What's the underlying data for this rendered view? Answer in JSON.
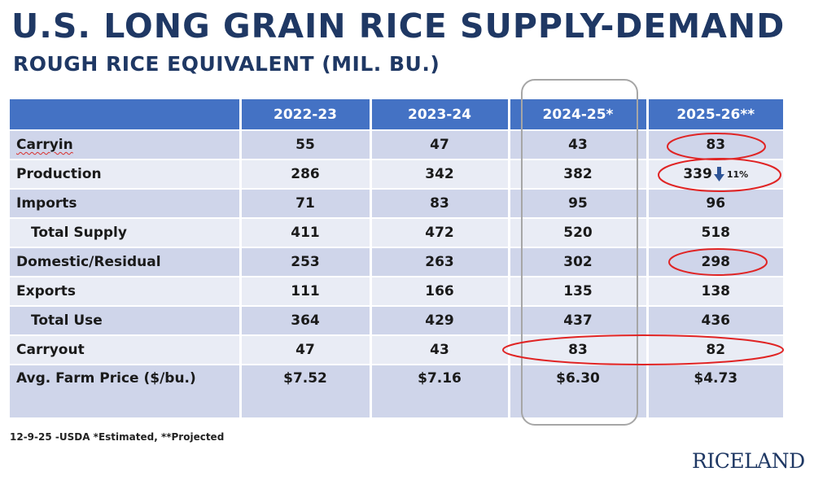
{
  "title": "U.S. LONG GRAIN RICE SUPPLY-DEMAND",
  "subtitle": "ROUGH RICE EQUIVALENT (MIL. BU.)",
  "table": {
    "headers": [
      "",
      "2022-23",
      "2023-24",
      "2024-25*",
      "2025-26**"
    ],
    "rows": [
      {
        "label": "Carryin",
        "values": [
          "55",
          "47",
          "43",
          "83"
        ]
      },
      {
        "label": "Production",
        "values": [
          "286",
          "342",
          "382",
          "339"
        ]
      },
      {
        "label": "Imports",
        "values": [
          "71",
          "83",
          "95",
          "96"
        ]
      },
      {
        "label": "Total Supply",
        "values": [
          "411",
          "472",
          "520",
          "518"
        ]
      },
      {
        "label": "Domestic/Residual",
        "values": [
          "253",
          "263",
          "302",
          "298"
        ]
      },
      {
        "label": "Exports",
        "values": [
          "111",
          "166",
          "135",
          "138"
        ]
      },
      {
        "label": "Total Use",
        "values": [
          "364",
          "429",
          "437",
          "436"
        ]
      },
      {
        "label": "Carryout",
        "values": [
          "47",
          "43",
          "83",
          "82"
        ]
      },
      {
        "label": "Avg. Farm Price ($/bu.)",
        "values": [
          "$7.52",
          "$7.16",
          "$6.30",
          "$4.73"
        ]
      }
    ],
    "production_change": {
      "icon": "arrow-down-icon",
      "text": "11%"
    }
  },
  "footnote": "12-9-25 -USDA  *Estimated, **Projected",
  "logo": "RICELAND",
  "colors": {
    "title": "#1f3864",
    "header_bg": "#4472c4",
    "row_dark": "#cfd5ea",
    "row_light": "#e9ecf5",
    "highlight_ellipse": "#e02424",
    "column_box": "#a6a6a6"
  }
}
